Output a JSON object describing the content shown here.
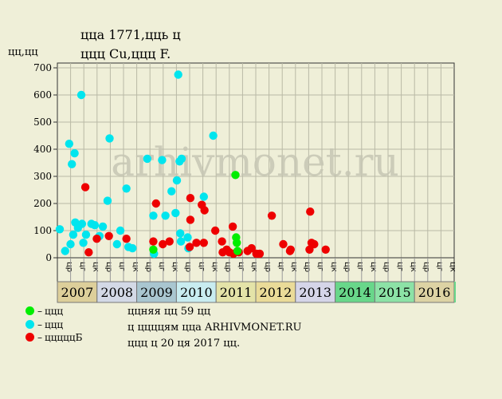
{
  "header": {
    "line1": "цца 1771,цць ц",
    "line2": "ццц Cu,ццц F.",
    "ylabel": "цц,цц"
  },
  "watermark": "arhivmonet.ru",
  "legend": [
    {
      "color": "#00ee00",
      "label": "ццц"
    },
    {
      "color": "#00e5ee",
      "label": "ццц"
    },
    {
      "color": "#ee0000",
      "label": "цццццБ"
    }
  ],
  "footer": [
    "ццняя цц 59 цц",
    "ц ццццям цца ARHIVMONET.RU",
    "ццц ц 20 ця 2017 цц."
  ],
  "chart_data": {
    "type": "scatter",
    "ylim": [
      0,
      700
    ],
    "yticks": [
      0,
      100,
      200,
      300,
      400,
      500,
      600,
      700
    ],
    "grid": true,
    "condition_labels": [
      "цр",
      "цг",
      "цк"
    ],
    "years": [
      {
        "label": "2007",
        "bg": "#ddcf9a"
      },
      {
        "label": "2008",
        "bg": "#d3d9e6"
      },
      {
        "label": "2009",
        "bg": "#a9c6d0"
      },
      {
        "label": "2010",
        "bg": "#c8ecf0"
      },
      {
        "label": "2011",
        "bg": "#e4e3a8"
      },
      {
        "label": "2012",
        "bg": "#eadb98"
      },
      {
        "label": "2013",
        "bg": "#d5d5e8"
      },
      {
        "label": "2014",
        "bg": "#68d78a"
      },
      {
        "label": "2015",
        "bg": "#8ce2a6"
      },
      {
        "label": "2016",
        "bg": "#ddd3a4"
      }
    ],
    "series": [
      {
        "color": "#00e5ee",
        "points": [
          [
            0.0,
            105
          ],
          [
            0.4,
            25
          ],
          [
            0.7,
            420
          ],
          [
            0.8,
            50
          ],
          [
            0.9,
            345
          ],
          [
            1.0,
            85
          ],
          [
            1.1,
            385
          ],
          [
            1.15,
            130
          ],
          [
            1.35,
            110
          ],
          [
            1.6,
            600
          ],
          [
            1.65,
            125
          ],
          [
            1.75,
            55
          ],
          [
            1.95,
            85
          ],
          [
            2.35,
            125
          ],
          [
            2.6,
            120
          ],
          [
            2.95,
            80
          ],
          [
            3.2,
            115
          ],
          [
            3.55,
            210
          ],
          [
            3.7,
            440
          ],
          [
            4.25,
            50
          ],
          [
            4.5,
            100
          ],
          [
            4.95,
            255
          ],
          [
            5.1,
            40
          ],
          [
            5.4,
            35
          ],
          [
            6.5,
            365
          ],
          [
            6.95,
            155
          ],
          [
            7.0,
            15
          ],
          [
            7.6,
            360
          ],
          [
            7.85,
            155
          ],
          [
            8.3,
            245
          ],
          [
            8.6,
            165
          ],
          [
            8.7,
            285
          ],
          [
            8.8,
            675
          ],
          [
            8.9,
            355
          ],
          [
            8.95,
            90
          ],
          [
            9.0,
            60
          ],
          [
            9.05,
            365
          ],
          [
            9.5,
            75
          ],
          [
            9.55,
            35
          ],
          [
            10.7,
            225
          ],
          [
            11.4,
            450
          ]
        ]
      },
      {
        "color": "#ee0000",
        "points": [
          [
            1.9,
            260
          ],
          [
            2.15,
            20
          ],
          [
            2.75,
            70
          ],
          [
            3.65,
            80
          ],
          [
            4.95,
            70
          ],
          [
            6.95,
            60
          ],
          [
            7.15,
            200
          ],
          [
            7.65,
            50
          ],
          [
            8.15,
            60
          ],
          [
            9.65,
            40
          ],
          [
            9.7,
            220
          ],
          [
            9.7,
            140
          ],
          [
            10.15,
            55
          ],
          [
            10.55,
            195
          ],
          [
            10.7,
            55
          ],
          [
            10.75,
            175
          ],
          [
            11.55,
            100
          ],
          [
            12.05,
            60
          ],
          [
            12.1,
            20
          ],
          [
            12.4,
            30
          ],
          [
            12.6,
            20
          ],
          [
            12.9,
            15
          ],
          [
            12.85,
            115
          ],
          [
            13.3,
            20
          ],
          [
            13.95,
            25
          ],
          [
            14.25,
            35
          ],
          [
            14.6,
            15
          ],
          [
            14.85,
            15
          ],
          [
            15.75,
            155
          ],
          [
            16.6,
            50
          ],
          [
            17.1,
            25
          ],
          [
            17.15,
            30
          ],
          [
            18.55,
            30
          ],
          [
            18.6,
            170
          ],
          [
            18.7,
            55
          ],
          [
            18.9,
            50
          ],
          [
            19.75,
            30
          ]
        ]
      },
      {
        "color": "#00ee00",
        "points": [
          [
            6.95,
            30
          ],
          [
            13.05,
            305
          ],
          [
            13.1,
            75
          ],
          [
            13.15,
            55
          ],
          [
            13.2,
            25
          ]
        ]
      }
    ]
  }
}
